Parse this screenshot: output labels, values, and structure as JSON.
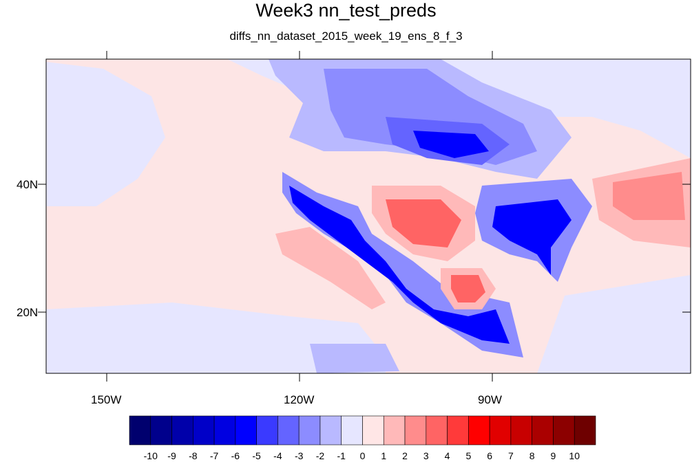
{
  "title": "Week3 nn_test_preds",
  "subtitle": "diffs_nn_dataset_2015_week_19_ens_8_f_3",
  "lat_labels": [
    "40N",
    "20N"
  ],
  "lon_labels": [
    "150W",
    "120W",
    "90W"
  ],
  "colorbar": {
    "labels": [
      "-10",
      "-9",
      "-8",
      "-7",
      "-6",
      "-5",
      "-4",
      "-3",
      "-2",
      "-1",
      "0",
      "1",
      "2",
      "3",
      "4",
      "5",
      "6",
      "7",
      "8",
      "9",
      "10"
    ],
    "colors": [
      "#00006e",
      "#00008c",
      "#0000aa",
      "#0000c8",
      "#0000e1",
      "#0000ff",
      "#3a3aff",
      "#6464ff",
      "#8c8cff",
      "#b9b9ff",
      "#e6e6ff",
      "#ffe6e6",
      "#ffb9b9",
      "#ff8c8c",
      "#ff6464",
      "#ff3a3a",
      "#ff0000",
      "#e10000",
      "#c80000",
      "#aa0000",
      "#8c0000",
      "#6e0000"
    ]
  },
  "map_colors": {
    "ocean_base": "#fde5e5",
    "light_blue": "#e6e6ff",
    "blue_2": "#b9b9ff",
    "blue_3": "#8c8cff",
    "blue_4": "#6464ff",
    "blue_5": "#3a3aff",
    "blue_6": "#0000ff",
    "blue_8": "#0000c8",
    "red_2": "#ffb9b9",
    "red_3": "#ff8c8c",
    "red_4": "#ff6464",
    "red_5": "#ff3a3a"
  }
}
